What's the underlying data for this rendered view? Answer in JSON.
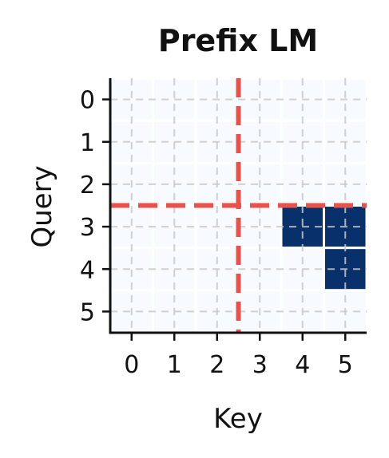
{
  "chart_data": {
    "type": "heatmap",
    "title": "Prefix LM",
    "xlabel": "Key",
    "ylabel": "Query",
    "x_ticks": [
      "0",
      "1",
      "2",
      "3",
      "4",
      "5"
    ],
    "y_ticks": [
      "0",
      "1",
      "2",
      "3",
      "4",
      "5"
    ],
    "matrix": [
      [
        0,
        0,
        0,
        0,
        0,
        0
      ],
      [
        0,
        0,
        0,
        0,
        0,
        0
      ],
      [
        0,
        0,
        0,
        0,
        0,
        0
      ],
      [
        0,
        0,
        0,
        0,
        1,
        1
      ],
      [
        0,
        0,
        0,
        0,
        0,
        1
      ],
      [
        0,
        0,
        0,
        0,
        0,
        0
      ]
    ],
    "xlim": [
      -0.5,
      5.5
    ],
    "ylim": [
      5.5,
      -0.5
    ],
    "grid": true,
    "prefix_boundary": {
      "x": 2.5,
      "y": 2.5
    },
    "colors": {
      "cell_low": "#f7fbff",
      "cell_high": "#08306b",
      "cell_border": "#ffffff",
      "grid": "#c8c8c8",
      "boundary": "#e8524a",
      "axis": "#111111"
    }
  }
}
